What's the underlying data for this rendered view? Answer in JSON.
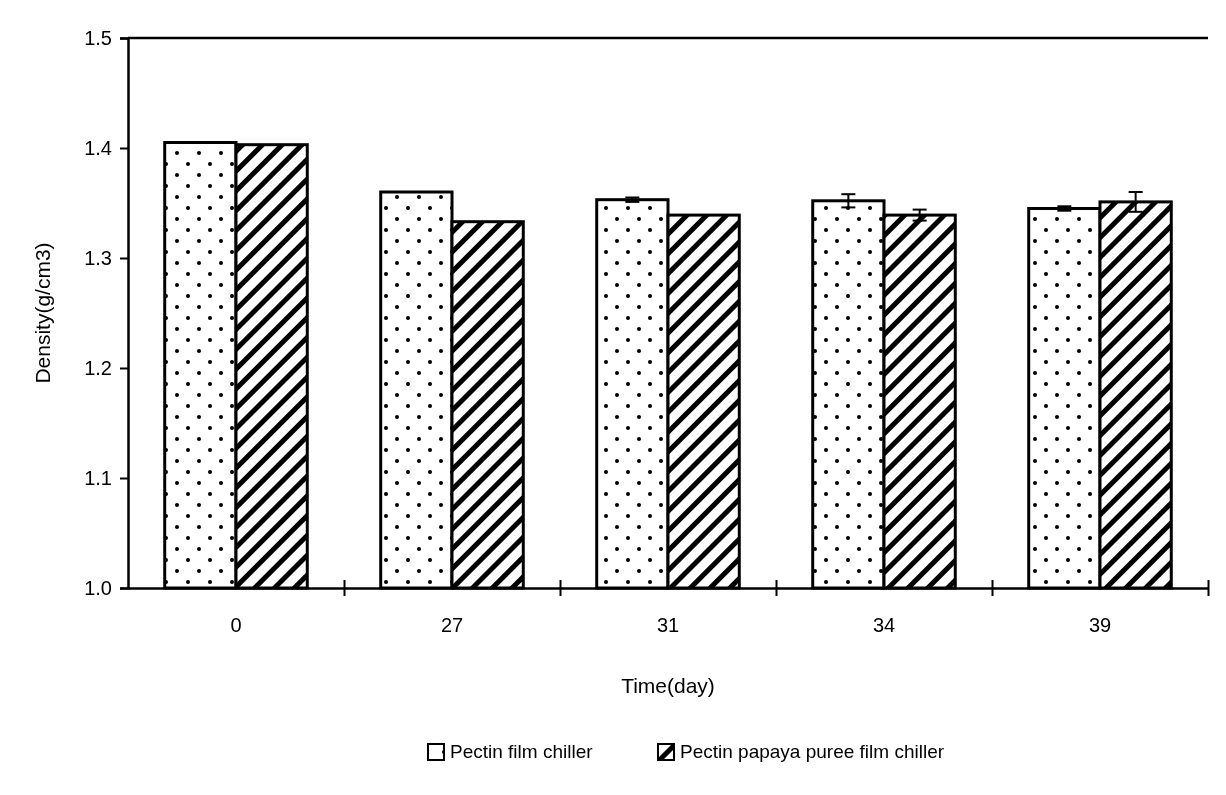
{
  "chart_data": {
    "type": "bar",
    "xlabel": "Time(day)",
    "ylabel": "Density(g/cm3)",
    "categories": [
      "0",
      "27",
      "31",
      "34",
      "39"
    ],
    "series": [
      {
        "name": "Pectin film chiller",
        "color": "#000000",
        "values": [
          1.405,
          1.36,
          1.353,
          1.352,
          1.345
        ],
        "errors": [
          null,
          null,
          0.002,
          0.006,
          0.002
        ]
      },
      {
        "name": "Pectin papaya puree film chiller",
        "color": "#000000",
        "values": [
          1.403,
          1.333,
          1.339,
          1.339,
          1.351
        ],
        "errors": [
          null,
          null,
          null,
          0.005,
          0.009
        ]
      }
    ],
    "ylim": [
      1.0,
      1.5
    ],
    "yticks": [
      {
        "value": 1.0,
        "label": "1.0"
      },
      1.1,
      1.2,
      1.3,
      1.4,
      1.5
    ],
    "grid": false,
    "legend": "bottom"
  }
}
